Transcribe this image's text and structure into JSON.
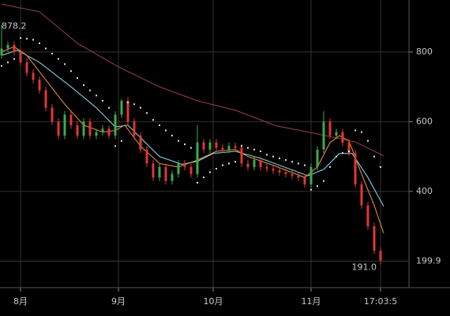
{
  "chart_data": {
    "type": "candlestick",
    "xlim": [
      -6.5,
      123
    ],
    "ylim": [
      124,
      949
    ],
    "xticks": [
      {
        "value": 0,
        "label": "8月"
      },
      {
        "value": 31,
        "label": "9月"
      },
      {
        "value": 61,
        "label": "10月"
      },
      {
        "value": 92,
        "label": "11月"
      },
      {
        "value": 114,
        "label": "17:03:5"
      }
    ],
    "yticks": [
      400,
      600,
      800
    ],
    "grid": true,
    "up_color": "#3faa4a",
    "down_color": "#e0392f",
    "candles": {
      "x": [
        -6,
        -4,
        -2,
        0,
        2,
        4,
        6,
        8,
        10,
        12,
        14,
        16,
        18,
        20,
        22,
        24,
        26,
        28,
        30,
        32,
        34,
        36,
        38,
        40,
        42,
        44,
        46,
        48,
        50,
        52,
        54,
        56,
        58,
        60,
        62,
        64,
        66,
        68,
        70,
        72,
        74,
        76,
        78,
        80,
        82,
        84,
        86,
        88,
        90,
        92,
        94,
        96,
        98,
        100,
        102,
        104,
        106,
        108,
        110,
        112,
        114
      ],
      "open": [
        790,
        810,
        820,
        800,
        770,
        740,
        720,
        690,
        640,
        600,
        560,
        620,
        590,
        560,
        600,
        560,
        570,
        580,
        560,
        620,
        660,
        600,
        560,
        520,
        480,
        440,
        470,
        430,
        450,
        480,
        470,
        450,
        540,
        520,
        540,
        525,
        520,
        530,
        525,
        480,
        470,
        490,
        470,
        465,
        460,
        455,
        450,
        445,
        440,
        420,
        470,
        520,
        600,
        560,
        570,
        540,
        510,
        420,
        360,
        300,
        230
      ],
      "high": [
        878.2,
        830,
        830,
        810,
        780,
        750,
        730,
        700,
        650,
        610,
        630,
        630,
        600,
        610,
        610,
        580,
        590,
        590,
        630,
        665,
        670,
        610,
        570,
        530,
        490,
        480,
        480,
        460,
        490,
        490,
        480,
        590,
        550,
        550,
        550,
        535,
        540,
        540,
        535,
        490,
        500,
        500,
        480,
        475,
        470,
        465,
        460,
        455,
        450,
        480,
        530,
        630,
        610,
        580,
        580,
        550,
        520,
        430,
        370,
        310,
        240
      ],
      "low": [
        780,
        800,
        790,
        760,
        730,
        710,
        680,
        630,
        590,
        550,
        550,
        580,
        550,
        550,
        550,
        550,
        560,
        550,
        550,
        610,
        590,
        550,
        510,
        470,
        430,
        430,
        420,
        420,
        440,
        460,
        440,
        440,
        510,
        510,
        515,
        510,
        510,
        515,
        470,
        460,
        460,
        460,
        455,
        450,
        445,
        440,
        435,
        430,
        410,
        410,
        460,
        510,
        550,
        550,
        530,
        500,
        410,
        350,
        290,
        220,
        191
      ],
      "close": [
        810,
        820,
        800,
        770,
        740,
        720,
        690,
        640,
        600,
        560,
        620,
        590,
        560,
        600,
        560,
        570,
        580,
        560,
        620,
        660,
        600,
        560,
        520,
        480,
        440,
        470,
        430,
        450,
        480,
        470,
        450,
        540,
        520,
        540,
        525,
        520,
        530,
        525,
        480,
        470,
        490,
        470,
        465,
        460,
        455,
        450,
        445,
        440,
        420,
        470,
        520,
        600,
        560,
        570,
        540,
        510,
        420,
        360,
        300,
        230,
        199.9
      ]
    },
    "lines": [
      {
        "color": "#8a3a4c",
        "x": [
          -6,
          6,
          18,
          31,
          44,
          56,
          68,
          81,
          94,
          106,
          115
        ],
        "values": [
          937,
          915,
          825,
          757,
          700,
          660,
          633,
          588,
          565,
          542,
          502
        ]
      },
      {
        "color": "#7fd0e2",
        "x": [
          -6,
          -1,
          6,
          16,
          24,
          30,
          34,
          44,
          51,
          56,
          61,
          68,
          76,
          91,
          96,
          101,
          105,
          110,
          115
        ],
        "values": [
          790,
          805,
          770,
          700,
          640,
          585,
          590,
          500,
          478,
          486,
          509,
          515,
          495,
          445,
          463,
          509,
          509,
          440,
          357
        ]
      },
      {
        "color": "#e08a3c",
        "x": [
          -6,
          -2,
          2,
          8,
          14,
          20,
          26,
          30,
          33,
          38,
          44,
          50,
          56,
          62,
          68,
          72,
          80,
          90,
          94,
          98,
          101,
          104,
          108,
          112,
          115
        ],
        "values": [
          800,
          815,
          790,
          720,
          650,
          590,
          570,
          575,
          590,
          530,
          480,
          470,
          490,
          515,
          520,
          500,
          475,
          440,
          470,
          540,
          560,
          545,
          450,
          360,
          280
        ]
      }
    ],
    "sar": {
      "color": "#e6e6e6",
      "values": [
        760,
        770,
        780,
        840,
        838,
        835,
        825,
        810,
        795,
        780,
        765,
        745,
        725,
        705,
        690,
        675,
        660,
        640,
        530,
        545,
        655,
        650,
        640,
        625,
        605,
        590,
        575,
        560,
        545,
        535,
        525,
        425,
        440,
        455,
        465,
        475,
        480,
        485,
        530,
        525,
        520,
        515,
        505,
        500,
        495,
        490,
        485,
        480,
        475,
        405,
        415,
        430,
        470,
        500,
        510,
        515,
        575,
        570,
        545,
        500,
        470
      ]
    },
    "max_label": "878.2",
    "min_label": "191.0",
    "last_price": 199.9
  }
}
